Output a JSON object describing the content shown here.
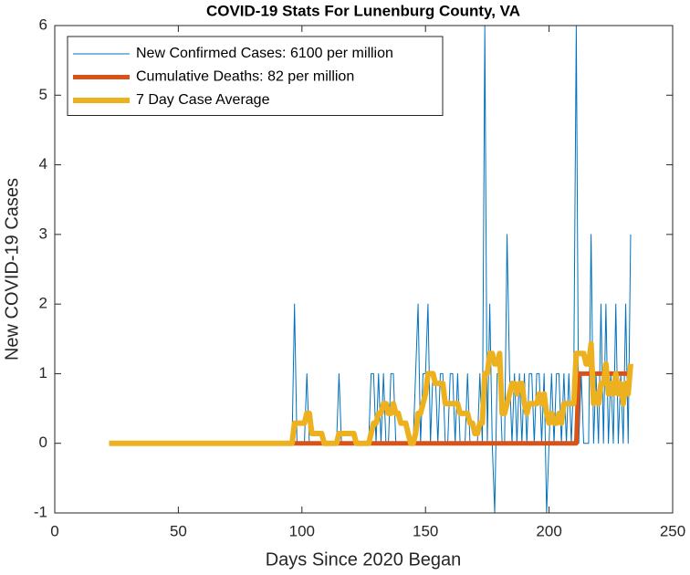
{
  "chart_data": {
    "type": "line",
    "title": "COVID-19 Stats For Lunenburg County, VA",
    "x_label": "Days Since 2020 Began",
    "y_label": "New COVID-19 Cases",
    "xlim": [
      0,
      250
    ],
    "xticks": [
      0,
      50,
      100,
      150,
      200,
      250
    ],
    "ylim": [
      -1,
      6
    ],
    "yticks": [
      -1,
      0,
      1,
      2,
      3,
      4,
      5,
      6
    ],
    "grid": false,
    "legend": "upper-left",
    "x": [
      22,
      23,
      24,
      25,
      26,
      27,
      28,
      29,
      30,
      31,
      32,
      33,
      34,
      35,
      36,
      37,
      38,
      39,
      40,
      41,
      42,
      43,
      44,
      45,
      46,
      47,
      48,
      49,
      50,
      51,
      52,
      53,
      54,
      55,
      56,
      57,
      58,
      59,
      60,
      61,
      62,
      63,
      64,
      65,
      66,
      67,
      68,
      69,
      70,
      71,
      72,
      73,
      74,
      75,
      76,
      77,
      78,
      79,
      80,
      81,
      82,
      83,
      84,
      85,
      86,
      87,
      88,
      89,
      90,
      91,
      92,
      93,
      94,
      95,
      96,
      97,
      98,
      99,
      100,
      101,
      102,
      103,
      104,
      105,
      106,
      107,
      108,
      109,
      110,
      111,
      112,
      113,
      114,
      115,
      116,
      117,
      118,
      119,
      120,
      121,
      122,
      123,
      124,
      125,
      126,
      127,
      128,
      129,
      130,
      131,
      132,
      133,
      134,
      135,
      136,
      137,
      138,
      139,
      140,
      141,
      142,
      143,
      144,
      145,
      146,
      147,
      148,
      149,
      150,
      151,
      152,
      153,
      154,
      155,
      156,
      157,
      158,
      159,
      160,
      161,
      162,
      163,
      164,
      165,
      166,
      167,
      168,
      169,
      170,
      171,
      172,
      173,
      174,
      175,
      176,
      177,
      178,
      179,
      180,
      181,
      182,
      183,
      184,
      185,
      186,
      187,
      188,
      189,
      190,
      191,
      192,
      193,
      194,
      195,
      196,
      197,
      198,
      199,
      200,
      201,
      202,
      203,
      204,
      205,
      206,
      207,
      208,
      209,
      210,
      211,
      212,
      213,
      214,
      215,
      216,
      217,
      218,
      219,
      220,
      221,
      222,
      223,
      224,
      225,
      226,
      227,
      228,
      229,
      230,
      231,
      232,
      233
    ],
    "series": [
      {
        "name": "New Confirmed Cases: 6100 per million",
        "color": "#0072BD",
        "width": 1,
        "values": [
          0,
          0,
          0,
          0,
          0,
          0,
          0,
          0,
          0,
          0,
          0,
          0,
          0,
          0,
          0,
          0,
          0,
          0,
          0,
          0,
          0,
          0,
          0,
          0,
          0,
          0,
          0,
          0,
          0,
          0,
          0,
          0,
          0,
          0,
          0,
          0,
          0,
          0,
          0,
          0,
          0,
          0,
          0,
          0,
          0,
          0,
          0,
          0,
          0,
          0,
          0,
          0,
          0,
          0,
          0,
          0,
          0,
          0,
          0,
          0,
          0,
          0,
          0,
          0,
          0,
          0,
          0,
          0,
          0,
          0,
          0,
          0,
          0,
          0,
          0,
          2,
          0,
          0,
          0,
          0,
          1,
          0,
          0,
          0,
          0,
          0,
          0,
          0,
          0,
          0,
          0,
          0,
          0,
          1,
          0,
          0,
          0,
          0,
          0,
          0,
          0,
          0,
          0,
          0,
          0,
          0,
          1,
          1,
          0,
          1,
          0,
          1,
          0,
          0,
          1,
          1,
          0,
          0,
          0,
          0,
          0,
          0,
          0,
          0,
          1,
          2,
          0,
          1,
          1,
          2,
          0,
          1,
          1,
          0,
          1,
          1,
          0,
          0,
          1,
          1,
          0,
          1,
          0,
          0,
          0,
          1,
          0,
          0,
          0,
          0,
          1,
          0,
          6,
          0,
          2,
          0,
          -1,
          1,
          1,
          0,
          0,
          3,
          1,
          0,
          1,
          0,
          1,
          0,
          1,
          0,
          1,
          1,
          0,
          1,
          1,
          0,
          1,
          -1,
          0,
          1,
          0,
          1,
          1,
          0,
          1,
          0,
          1,
          0,
          1,
          6,
          0,
          1,
          0,
          0,
          0,
          3,
          0,
          1,
          0,
          2,
          0,
          2,
          0,
          1,
          0,
          2,
          0,
          1,
          0,
          2,
          0,
          3
        ]
      },
      {
        "name": "Cumulative Deaths: 82 per million",
        "color": "#D95319",
        "width": 5,
        "values": [
          0,
          0,
          0,
          0,
          0,
          0,
          0,
          0,
          0,
          0,
          0,
          0,
          0,
          0,
          0,
          0,
          0,
          0,
          0,
          0,
          0,
          0,
          0,
          0,
          0,
          0,
          0,
          0,
          0,
          0,
          0,
          0,
          0,
          0,
          0,
          0,
          0,
          0,
          0,
          0,
          0,
          0,
          0,
          0,
          0,
          0,
          0,
          0,
          0,
          0,
          0,
          0,
          0,
          0,
          0,
          0,
          0,
          0,
          0,
          0,
          0,
          0,
          0,
          0,
          0,
          0,
          0,
          0,
          0,
          0,
          0,
          0,
          0,
          0,
          0,
          0,
          0,
          0,
          0,
          0,
          0,
          0,
          0,
          0,
          0,
          0,
          0,
          0,
          0,
          0,
          0,
          0,
          0,
          0,
          0,
          0,
          0,
          0,
          0,
          0,
          0,
          0,
          0,
          0,
          0,
          0,
          0,
          0,
          0,
          0,
          0,
          0,
          0,
          0,
          0,
          0,
          0,
          0,
          0,
          0,
          0,
          0,
          0,
          0,
          0,
          0,
          0,
          0,
          0,
          0,
          0,
          0,
          0,
          0,
          0,
          0,
          0,
          0,
          0,
          0,
          0,
          0,
          0,
          0,
          0,
          0,
          0,
          0,
          0,
          0,
          0,
          0,
          0,
          0,
          0,
          0,
          0,
          0,
          0,
          0,
          0,
          0,
          0,
          0,
          0,
          0,
          0,
          0,
          0,
          0,
          0,
          0,
          0,
          0,
          0,
          0,
          0,
          0,
          0,
          0,
          0,
          0,
          0,
          0,
          0,
          0,
          0,
          0,
          0,
          0,
          1,
          1,
          1,
          1,
          1,
          1,
          1,
          1,
          1,
          1,
          1,
          1,
          1,
          1,
          1,
          1,
          1,
          1,
          1,
          1,
          1,
          1
        ]
      },
      {
        "name": "7 Day Case Average",
        "color": "#EDB120",
        "width": 6,
        "values": [
          0,
          0,
          0,
          0,
          0,
          0,
          0,
          0,
          0,
          0,
          0,
          0,
          0,
          0,
          0,
          0,
          0,
          0,
          0,
          0,
          0,
          0,
          0,
          0,
          0,
          0,
          0,
          0,
          0,
          0,
          0,
          0,
          0,
          0,
          0,
          0,
          0,
          0,
          0,
          0,
          0,
          0,
          0,
          0,
          0,
          0,
          0,
          0,
          0,
          0,
          0,
          0,
          0,
          0,
          0,
          0,
          0,
          0,
          0,
          0,
          0,
          0,
          0,
          0,
          0,
          0,
          0,
          0,
          0,
          0,
          0,
          0,
          0,
          0,
          0,
          0.29,
          0.29,
          0.29,
          0.29,
          0.29,
          0.43,
          0.43,
          0.14,
          0.14,
          0.14,
          0.14,
          0.14,
          0,
          0,
          0,
          0,
          0,
          0,
          0.14,
          0.14,
          0.14,
          0.14,
          0.14,
          0.14,
          0.14,
          0,
          0,
          0,
          0,
          0,
          0,
          0.14,
          0.29,
          0.29,
          0.43,
          0.43,
          0.57,
          0.57,
          0.43,
          0.43,
          0.57,
          0.43,
          0.43,
          0.29,
          0.29,
          0.29,
          0.14,
          0,
          0,
          0.14,
          0.43,
          0.43,
          0.57,
          0.71,
          1,
          1,
          1,
          0.86,
          0.86,
          0.86,
          0.86,
          0.57,
          0.57,
          0.57,
          0.57,
          0.57,
          0.57,
          0.43,
          0.43,
          0.43,
          0.43,
          0.29,
          0.29,
          0.14,
          0.14,
          0.29,
          0.29,
          1,
          1,
          1.29,
          1.29,
          1.14,
          1.14,
          1.29,
          0.43,
          0.43,
          0.57,
          0.71,
          0.86,
          0.86,
          0.71,
          0.86,
          0.86,
          0.57,
          0.43,
          0.57,
          0.57,
          0.57,
          0.57,
          0.71,
          0.57,
          0.71,
          0.43,
          0.29,
          0.43,
          0.29,
          0.29,
          0.43,
          0.29,
          0.57,
          0.57,
          0.57,
          0.57,
          0.57,
          1.29,
          1.29,
          1.29,
          1.29,
          1.14,
          1.14,
          1.43,
          0.57,
          0.71,
          0.57,
          0.86,
          0.86,
          1.14,
          0.71,
          0.86,
          0.71,
          1,
          0.71,
          0.86,
          0.57,
          0.86,
          0.71,
          1.14
        ]
      }
    ]
  }
}
